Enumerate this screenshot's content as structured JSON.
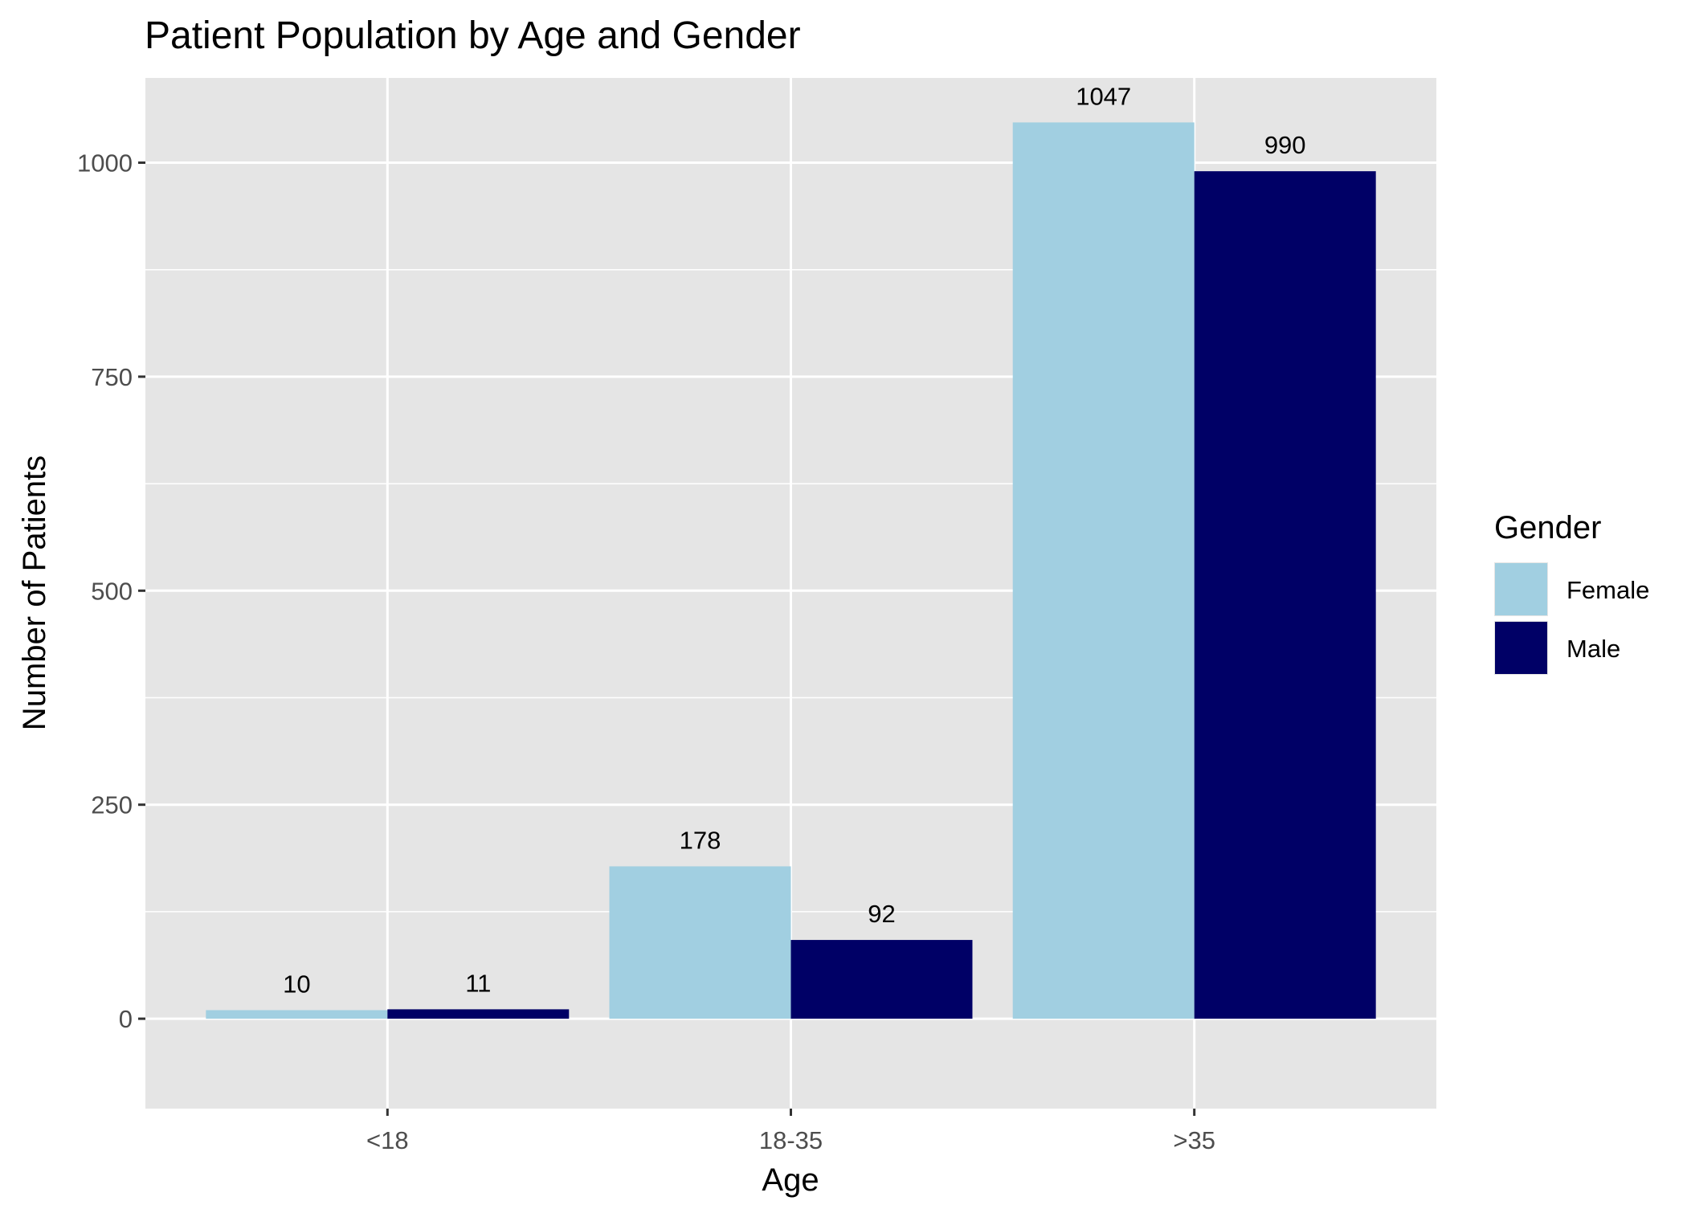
{
  "chart_data": {
    "type": "bar",
    "title": "Patient Population by Age and Gender",
    "xlabel": "Age",
    "ylabel": "Number of Patients",
    "categories": [
      "<18",
      "18-35",
      ">35"
    ],
    "series": [
      {
        "name": "Female",
        "values": [
          10,
          178,
          1047
        ],
        "color": "#a1cfe1"
      },
      {
        "name": "Male",
        "values": [
          11,
          92,
          990
        ],
        "color": "#000066"
      }
    ],
    "ylim": [
      -105,
      1099
    ],
    "yticks": [
      0,
      250,
      500,
      750,
      1000
    ],
    "ytick_labels": [
      "0",
      "250",
      "500",
      "750",
      "1000"
    ],
    "grid": true,
    "legend": {
      "title": "Gender",
      "position": "right"
    },
    "panel_background": "#e5e5e5",
    "grid_color": "#ffffff"
  }
}
